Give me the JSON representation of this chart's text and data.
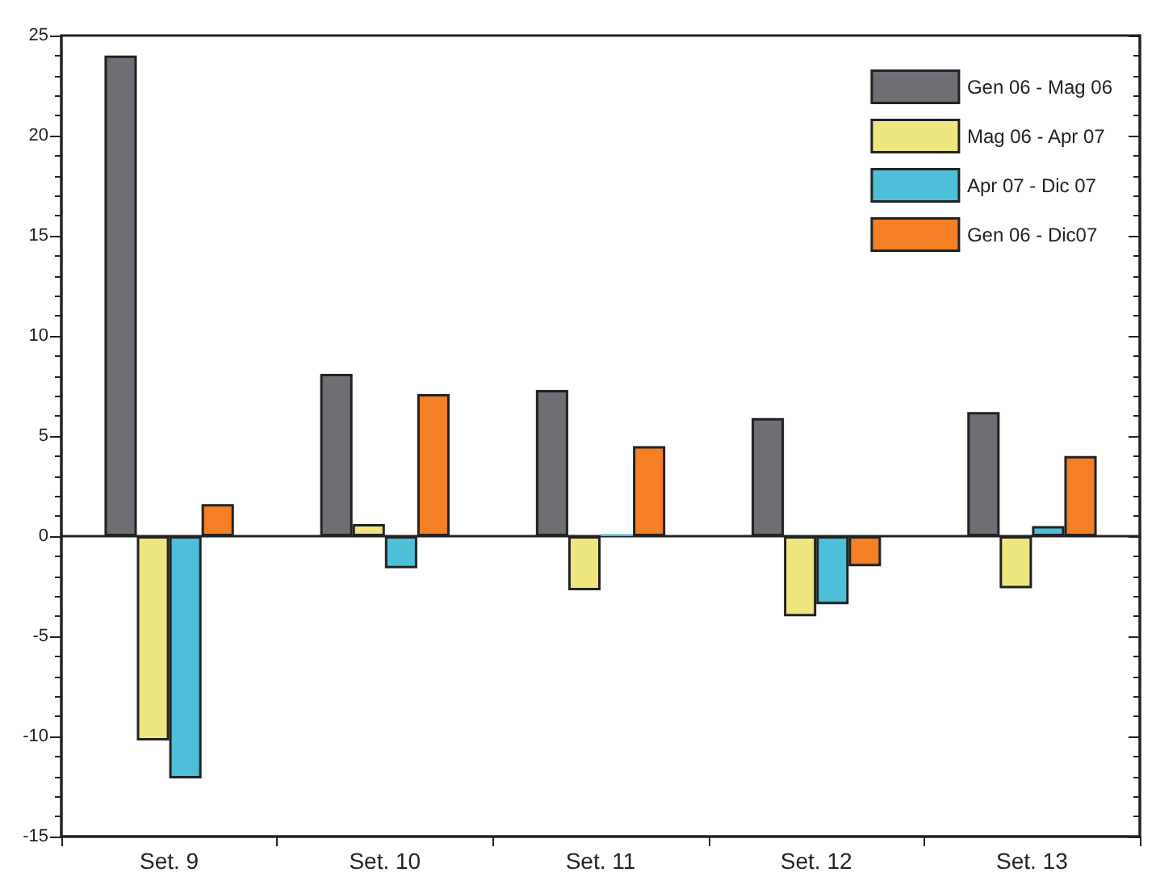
{
  "chart_data": {
    "type": "bar",
    "categories": [
      "Set. 9",
      "Set. 10",
      "Set. 11",
      "Set. 12",
      "Set. 13"
    ],
    "series": [
      {
        "name": "Gen 06 - Mag 06",
        "color": "#6e6e74",
        "values": [
          24.0,
          8.1,
          7.3,
          5.9,
          6.2
        ]
      },
      {
        "name": "Mag 06 - Apr 07",
        "color": "#f0e680",
        "values": [
          -10.2,
          0.6,
          -2.7,
          -4.0,
          -2.6
        ]
      },
      {
        "name": "Apr 07 - Dic 07",
        "color": "#4cc0d8",
        "values": [
          -12.1,
          -1.6,
          0.1,
          -3.4,
          0.5
        ]
      },
      {
        "name": "Gen 06 - Dic07",
        "color": "#f57f24",
        "values": [
          1.6,
          7.1,
          4.5,
          -1.5,
          4.0
        ]
      }
    ],
    "ylim": [
      -15,
      25
    ],
    "yticks": [
      -15,
      -10,
      -5,
      0,
      5,
      10,
      15,
      20,
      25
    ],
    "legend": "top right"
  }
}
